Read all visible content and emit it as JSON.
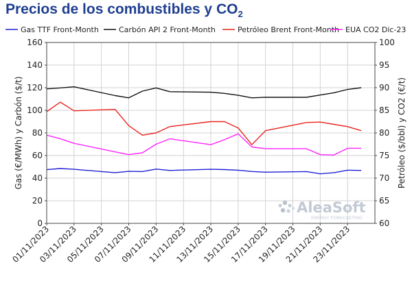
{
  "chart_data": {
    "type": "line",
    "title": "Precios de los combustibles y CO",
    "title_subscript": "2",
    "ylabel_left": "Gas (€/MWh) y Carbón ($/t)",
    "ylabel_right": "Petróleo ($/bbl) y CO2 (€/t)",
    "ylim_left": [
      0,
      160
    ],
    "ylim_right": [
      60,
      100
    ],
    "yticks_left": [
      "0",
      "20",
      "40",
      "60",
      "80",
      "100",
      "120",
      "140",
      "160"
    ],
    "yticks_right": [
      "60",
      "65",
      "70",
      "75",
      "80",
      "85",
      "90",
      "95",
      "100"
    ],
    "xticks": [
      "01/11/2023",
      "03/11/2023",
      "05/11/2023",
      "07/11/2023",
      "09/11/2023",
      "11/11/2023",
      "13/11/2023",
      "15/11/2023",
      "17/11/2023",
      "19/11/2023",
      "21/11/2023",
      "23/11/2023"
    ],
    "x": [
      "01/11/2023",
      "02/11/2023",
      "03/11/2023",
      "06/11/2023",
      "07/11/2023",
      "08/11/2023",
      "09/11/2023",
      "10/11/2023",
      "13/11/2023",
      "14/11/2023",
      "15/11/2023",
      "16/11/2023",
      "17/11/2023",
      "20/11/2023",
      "21/11/2023",
      "22/11/2023",
      "23/11/2023",
      "24/11/2023"
    ],
    "grid": true,
    "legend": "top",
    "series": [
      {
        "name": "Gas TTF Front-Month",
        "axis": "left",
        "color": "#1f1fd6",
        "values": [
          47.5,
          48.5,
          47.8,
          44.8,
          46.0,
          45.8,
          48.0,
          46.8,
          47.8,
          47.6,
          47.0,
          45.9,
          45.3,
          45.8,
          43.8,
          44.8,
          47.0,
          46.8
        ]
      },
      {
        "name": "Carbón API 2 Front-Month",
        "axis": "left",
        "color": "#111111",
        "values": [
          119.0,
          119.8,
          120.8,
          113.0,
          111.0,
          117.0,
          119.8,
          116.5,
          116.0,
          115.0,
          113.3,
          111.0,
          111.5,
          111.5,
          113.5,
          115.5,
          118.5,
          120.0
        ]
      },
      {
        "name": "Petróleo Brent Front-Month",
        "axis": "right",
        "color": "#e8231d",
        "values": [
          84.7,
          86.8,
          84.9,
          85.2,
          81.6,
          79.5,
          80.0,
          81.4,
          82.5,
          82.5,
          81.1,
          77.4,
          80.5,
          82.3,
          82.4,
          81.9,
          81.4,
          80.5
        ]
      },
      {
        "name": "EUA CO2 Dic-23",
        "axis": "right",
        "color": "#ff22ff",
        "values": [
          79.5,
          78.7,
          77.7,
          75.8,
          75.2,
          75.6,
          77.5,
          78.7,
          77.4,
          78.5,
          79.8,
          76.9,
          76.5,
          76.5,
          75.2,
          75.1,
          76.6,
          76.6
        ]
      }
    ]
  },
  "watermark": {
    "brand": "AleaSoft",
    "tagline": "ENERGY FORECASTING"
  }
}
